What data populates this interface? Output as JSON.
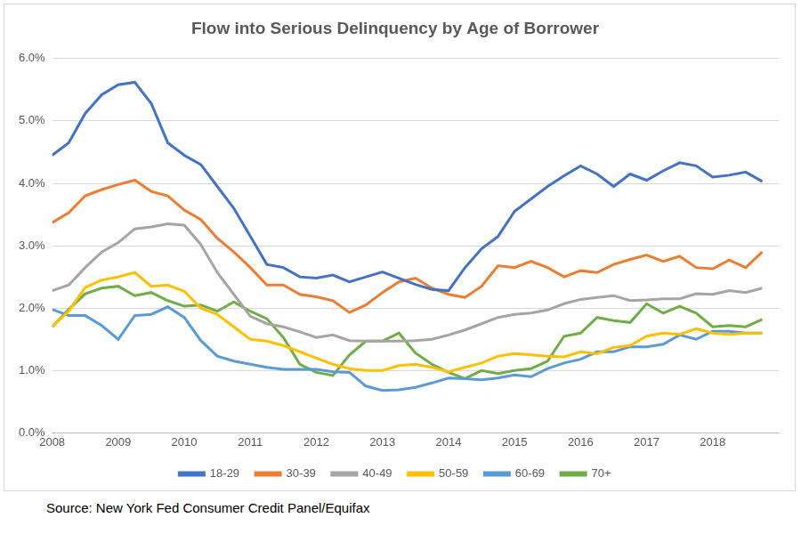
{
  "chart_data": {
    "type": "line",
    "title": "Flow into Serious Delinquency by Age of Borrower",
    "source": "Source: New York Fed Consumer Credit Panel/Equifax",
    "x": [
      2008,
      2008.25,
      2008.5,
      2008.75,
      2009,
      2009.25,
      2009.5,
      2009.75,
      2010,
      2010.25,
      2010.5,
      2010.75,
      2011,
      2011.25,
      2011.5,
      2011.75,
      2012,
      2012.25,
      2012.5,
      2012.75,
      2013,
      2013.25,
      2013.5,
      2013.75,
      2014,
      2014.25,
      2014.5,
      2014.75,
      2015,
      2015.25,
      2015.5,
      2015.75,
      2016,
      2016.25,
      2016.5,
      2016.75,
      2017,
      2017.25,
      2017.5,
      2017.75,
      2018,
      2018.25,
      2018.5,
      2018.75
    ],
    "series": [
      {
        "name": "18-29",
        "color": "#4472c4",
        "values": [
          4.45,
          4.65,
          5.12,
          5.42,
          5.58,
          5.62,
          5.28,
          4.65,
          4.45,
          4.3,
          3.95,
          3.6,
          3.15,
          2.7,
          2.65,
          2.5,
          2.48,
          2.53,
          2.42,
          2.5,
          2.58,
          2.48,
          2.38,
          2.3,
          2.28,
          2.65,
          2.95,
          3.15,
          3.55,
          3.75,
          3.95,
          4.12,
          4.28,
          4.15,
          3.95,
          4.15,
          4.05,
          4.2,
          4.33,
          4.28,
          4.1,
          4.13,
          4.18,
          4.03
        ]
      },
      {
        "name": "30-39",
        "color": "#ed7d31",
        "values": [
          3.37,
          3.53,
          3.8,
          3.9,
          3.98,
          4.05,
          3.87,
          3.8,
          3.57,
          3.42,
          3.12,
          2.9,
          2.65,
          2.37,
          2.37,
          2.22,
          2.18,
          2.12,
          1.93,
          2.05,
          2.25,
          2.42,
          2.48,
          2.32,
          2.22,
          2.17,
          2.35,
          2.68,
          2.65,
          2.75,
          2.65,
          2.5,
          2.6,
          2.57,
          2.7,
          2.78,
          2.85,
          2.75,
          2.83,
          2.65,
          2.63,
          2.77,
          2.65,
          2.9
        ]
      },
      {
        "name": "40-49",
        "color": "#a5a5a5",
        "values": [
          2.28,
          2.37,
          2.65,
          2.9,
          3.05,
          3.27,
          3.3,
          3.35,
          3.33,
          3.02,
          2.57,
          2.22,
          1.87,
          1.75,
          1.7,
          1.62,
          1.53,
          1.57,
          1.48,
          1.47,
          1.47,
          1.47,
          1.48,
          1.5,
          1.57,
          1.65,
          1.75,
          1.85,
          1.9,
          1.92,
          1.97,
          2.07,
          2.14,
          2.17,
          2.2,
          2.12,
          2.13,
          2.15,
          2.15,
          2.23,
          2.22,
          2.28,
          2.25,
          2.32
        ]
      },
      {
        "name": "50-59",
        "color": "#ffc000",
        "values": [
          1.7,
          1.95,
          2.33,
          2.45,
          2.5,
          2.57,
          2.35,
          2.37,
          2.27,
          2.0,
          1.9,
          1.7,
          1.5,
          1.47,
          1.4,
          1.3,
          1.2,
          1.1,
          1.03,
          1.0,
          1.0,
          1.08,
          1.1,
          1.05,
          0.98,
          1.05,
          1.12,
          1.23,
          1.27,
          1.25,
          1.23,
          1.22,
          1.3,
          1.27,
          1.37,
          1.4,
          1.55,
          1.6,
          1.58,
          1.67,
          1.6,
          1.58,
          1.6,
          1.6
        ]
      },
      {
        "name": "60-69",
        "color": "#5b9bd5",
        "values": [
          1.98,
          1.88,
          1.88,
          1.72,
          1.5,
          1.88,
          1.9,
          2.02,
          1.85,
          1.48,
          1.23,
          1.15,
          1.1,
          1.05,
          1.02,
          1.02,
          1.02,
          0.98,
          0.97,
          0.75,
          0.68,
          0.69,
          0.73,
          0.8,
          0.88,
          0.87,
          0.85,
          0.88,
          0.93,
          0.9,
          1.03,
          1.12,
          1.18,
          1.3,
          1.3,
          1.38,
          1.38,
          1.42,
          1.57,
          1.5,
          1.63,
          1.63,
          1.6,
          1.6
        ]
      },
      {
        "name": "70+",
        "color": "#70ad47",
        "values": [
          1.7,
          1.98,
          2.23,
          2.32,
          2.35,
          2.2,
          2.25,
          2.12,
          2.03,
          2.05,
          1.95,
          2.1,
          1.95,
          1.83,
          1.53,
          1.1,
          0.97,
          0.92,
          1.25,
          1.47,
          1.47,
          1.6,
          1.28,
          1.1,
          0.97,
          0.87,
          1.0,
          0.95,
          1.0,
          1.03,
          1.15,
          1.55,
          1.6,
          1.85,
          1.8,
          1.77,
          2.07,
          1.92,
          2.03,
          1.92,
          1.7,
          1.72,
          1.7,
          1.82
        ]
      }
    ],
    "xlim": [
      2008,
      2019
    ],
    "xticks": [
      2008,
      2009,
      2010,
      2011,
      2012,
      2013,
      2014,
      2015,
      2016,
      2017,
      2018
    ],
    "ylim": [
      0,
      6
    ],
    "yticks": [
      {
        "value": 0,
        "label": "0.0%"
      },
      {
        "value": 1,
        "label": "1.0%"
      },
      {
        "value": 2,
        "label": "2.0%"
      },
      {
        "value": 3,
        "label": "3.0%"
      },
      {
        "value": 4,
        "label": "4.0%"
      },
      {
        "value": 5,
        "label": "5.0%"
      },
      {
        "value": 6,
        "label": "6.0%"
      }
    ],
    "grid": true,
    "legend": "bottom"
  }
}
